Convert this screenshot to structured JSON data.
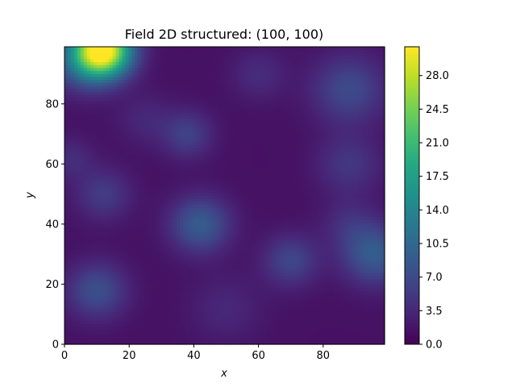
{
  "chart_data": {
    "type": "heatmap",
    "title": "Field 2D structured: (100, 100)",
    "xlabel": "x",
    "ylabel": "y",
    "xlim": [
      0,
      99
    ],
    "ylim": [
      0,
      99
    ],
    "x_ticks": [
      0,
      20,
      40,
      60,
      80
    ],
    "y_ticks": [
      0,
      20,
      40,
      60,
      80
    ],
    "colormap": "viridis",
    "colorbar": {
      "range": [
        0.0,
        31.0
      ],
      "ticks": [
        0.0,
        3.5,
        7.0,
        10.5,
        14.0,
        17.5,
        21.0,
        24.5,
        28.0
      ],
      "tick_labels": [
        "0.0",
        "3.5",
        "7.0",
        "10.5",
        "14.0",
        "17.5",
        "21.0",
        "24.5",
        "28.0"
      ]
    },
    "grid_shape": [
      100,
      100
    ],
    "field_baseline": 1.5,
    "field_features": [
      {
        "x": 12,
        "y": 98,
        "amplitude": 29.0,
        "spread": 6.0
      },
      {
        "x": 6,
        "y": 95,
        "amplitude": 8.0,
        "spread": 7.0
      },
      {
        "x": 88,
        "y": 85,
        "amplitude": 5.5,
        "spread": 8.0
      },
      {
        "x": 42,
        "y": 40,
        "amplitude": 7.5,
        "spread": 6.5
      },
      {
        "x": 38,
        "y": 70,
        "amplitude": 4.5,
        "spread": 5.5
      },
      {
        "x": 10,
        "y": 18,
        "amplitude": 6.0,
        "spread": 6.5
      },
      {
        "x": 96,
        "y": 30,
        "amplitude": 7.5,
        "spread": 7.0
      },
      {
        "x": 70,
        "y": 28,
        "amplitude": 5.0,
        "spread": 6.0
      },
      {
        "x": 12,
        "y": 50,
        "amplitude": 4.0,
        "spread": 6.0
      },
      {
        "x": 88,
        "y": 60,
        "amplitude": 3.5,
        "spread": 7.0
      },
      {
        "x": 2,
        "y": 62,
        "amplitude": 2.5,
        "spread": 5.0
      },
      {
        "x": 60,
        "y": 90,
        "amplitude": 2.5,
        "spread": 6.0
      },
      {
        "x": 50,
        "y": 12,
        "amplitude": 2.0,
        "spread": 8.0
      },
      {
        "x": 88,
        "y": 40,
        "amplitude": 2.5,
        "spread": 6.0
      },
      {
        "x": 25,
        "y": 75,
        "amplitude": 2.0,
        "spread": 6.0
      }
    ]
  }
}
